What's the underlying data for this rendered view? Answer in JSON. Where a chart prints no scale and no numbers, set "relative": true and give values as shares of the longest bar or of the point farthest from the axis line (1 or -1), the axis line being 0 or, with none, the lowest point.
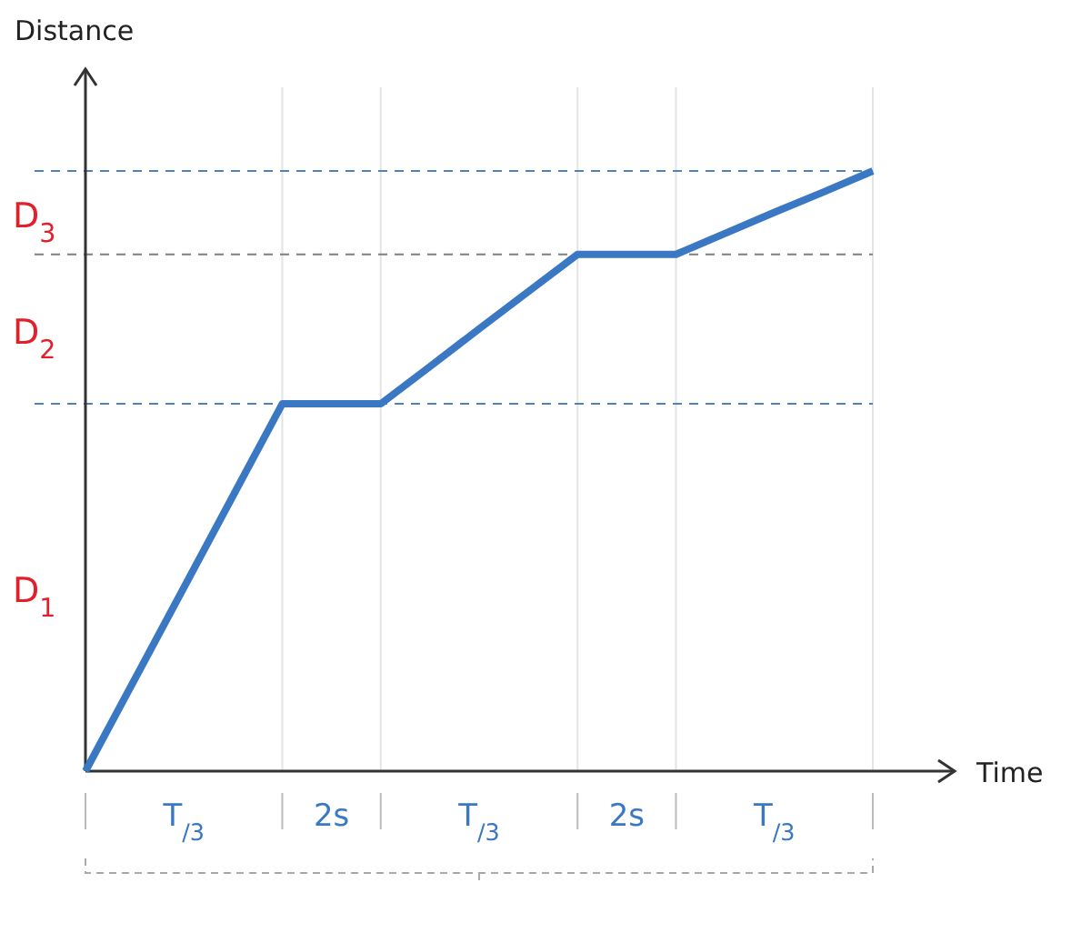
{
  "chart_data": {
    "type": "line",
    "relative": true,
    "xlabel": "Time",
    "ylabel": "Distance",
    "line_style": "solid",
    "grid": "x",
    "marker": "none",
    "categories": [
      null,
      null,
      "T$_{/3}$",
      null,
      null,
      "2s",
      null,
      null,
      "T$_{/3}$",
      null,
      null,
      "2s",
      null,
      null,
      "T$_{/3}$",
      null,
      null
    ],
    "series": [
      {
        "color": "#3a78c4",
        "values": [
          0,
          0.153,
          0.306,
          0.459,
          0.612,
          0.612,
          0.612,
          0.674,
          0.737,
          0.799,
          0.861,
          0.861,
          0.861,
          0.896,
          0.931,
          0.965,
          1
        ]
      }
    ],
    "ref_lines": [
      {
        "axis": "y",
        "value": 0.612,
        "color": "#4f81bd",
        "line_style": "dashed"
      },
      {
        "axis": "y",
        "value": 0.861,
        "color": "#7f7f7f",
        "line_style": "dashed"
      },
      {
        "axis": "y",
        "value": 1,
        "color": "#4f81bd",
        "line_style": "dashed"
      }
    ],
    "annotations": [
      "D$_{1}$",
      "D$_{2}$",
      "D$_{3}$"
    ]
  }
}
